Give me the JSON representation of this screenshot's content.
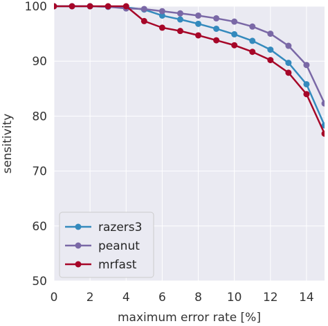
{
  "chart_data": {
    "type": "line",
    "xlabel": "maximum error rate [%]",
    "ylabel": "sensitivity",
    "xlim": [
      0,
      15
    ],
    "ylim": [
      50,
      100
    ],
    "xticks": [
      "0",
      "2",
      "4",
      "6",
      "8",
      "10",
      "12",
      "14"
    ],
    "yticks": [
      "50",
      "60",
      "70",
      "80",
      "90",
      "100"
    ],
    "grid": true,
    "legend_position": "lower-left",
    "background": "#eaeaf2",
    "x": [
      0,
      1,
      2,
      3,
      4,
      5,
      6,
      7,
      8,
      9,
      10,
      11,
      12,
      13,
      14,
      15
    ],
    "series": [
      {
        "name": "razers3",
        "color": "#348abd",
        "values": [
          100,
          100,
          100,
          99.9,
          99.8,
          99.4,
          98.3,
          97.6,
          96.8,
          95.9,
          94.9,
          93.7,
          92.1,
          89.7,
          85.8,
          78.3
        ]
      },
      {
        "name": "peanut",
        "color": "#7a68a6",
        "values": [
          100,
          100,
          100,
          99.9,
          99.6,
          99.5,
          99.1,
          98.7,
          98.3,
          97.8,
          97.2,
          96.3,
          95.0,
          92.8,
          89.3,
          82.3
        ]
      },
      {
        "name": "mrfast",
        "color": "#a60628",
        "values": [
          100,
          100,
          100,
          100,
          100,
          97.3,
          96.1,
          95.5,
          94.7,
          93.8,
          92.9,
          91.7,
          90.2,
          87.9,
          84.0,
          76.8
        ]
      }
    ]
  }
}
